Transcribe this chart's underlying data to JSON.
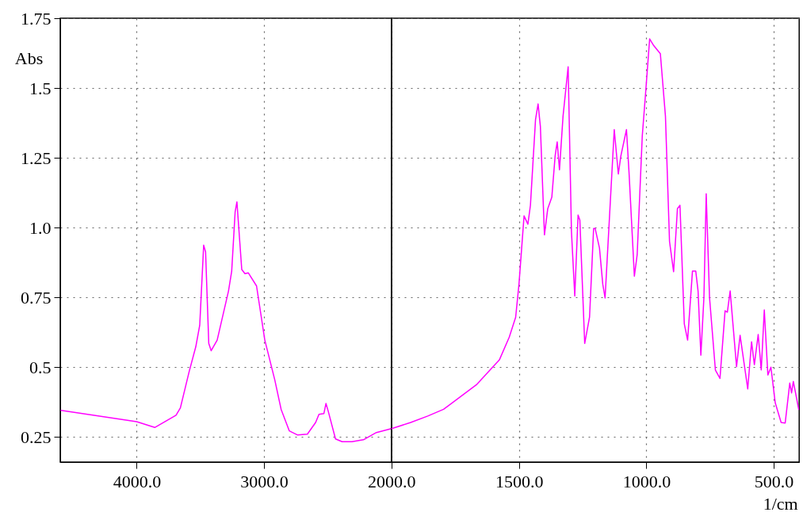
{
  "chart_data": [
    {
      "type": "line",
      "ylabel": "Abs",
      "xlim": [
        4600,
        2000
      ],
      "ylim": [
        0.16,
        1.75
      ],
      "xticks": [
        {
          "value": 4000,
          "label": "4000.0"
        },
        {
          "value": 3000,
          "label": "3000.0"
        },
        {
          "value": 2000,
          "label": "2000.0"
        }
      ],
      "yticks": [
        0.25,
        0.5,
        0.75,
        {
          "value": 1,
          "label": "1.0"
        },
        1.25,
        1.5,
        1.75
      ],
      "grid": true,
      "marker": "none",
      "line_style": "solid",
      "series": [
        {
          "color": "#ff00ff",
          "x": [
            4593,
            4000,
            3858,
            3691,
            3657,
            3588,
            3536,
            3505,
            3474,
            3459,
            3434,
            3415,
            3368,
            3279,
            3254,
            3227,
            3213,
            3175,
            3150,
            3124,
            3059,
            2994,
            2916,
            2866,
            2802,
            2736,
            2660,
            2595,
            2569,
            2530,
            2514,
            2496,
            2439,
            2387,
            2310,
            2220,
            2118,
            2000
          ],
          "values": [
            0.345,
            0.305,
            0.284,
            0.328,
            0.354,
            0.484,
            0.573,
            0.65,
            0.937,
            0.913,
            0.585,
            0.559,
            0.597,
            0.773,
            0.844,
            1.056,
            1.092,
            0.85,
            0.835,
            0.838,
            0.791,
            0.597,
            0.455,
            0.349,
            0.272,
            0.257,
            0.26,
            0.302,
            0.331,
            0.334,
            0.37,
            0.342,
            0.243,
            0.233,
            0.233,
            0.24,
            0.266,
            0.28
          ]
        }
      ]
    },
    {
      "type": "line",
      "xlabel": "1/cm",
      "xlim": [
        2000,
        400
      ],
      "ylim": [
        0.16,
        1.75
      ],
      "xticks": [
        {
          "value": 1500,
          "label": "1500.0"
        },
        {
          "value": 1000,
          "label": "1000.0"
        },
        {
          "value": 500,
          "label": "500.0"
        }
      ],
      "yticks": [
        0.25,
        0.5,
        0.75,
        1,
        1.25,
        1.5,
        1.75
      ],
      "tick_labels": "x",
      "grid": true,
      "marker": "none",
      "line_style": "solid",
      "series": [
        {
          "color": "#ff00ff",
          "x": [
            2000,
            1925,
            1858,
            1796,
            1667,
            1577,
            1538,
            1513,
            1500,
            1480,
            1465,
            1455,
            1435,
            1425,
            1416,
            1400,
            1387,
            1371,
            1358,
            1350,
            1341,
            1327,
            1307,
            1294,
            1281,
            1268,
            1261,
            1242,
            1223,
            1207,
            1201,
            1184,
            1171,
            1162,
            1126,
            1110,
            1100,
            1078,
            1068,
            1047,
            1036,
            1016,
            1003,
            987,
            971,
            945,
            925,
            909,
            893,
            878,
            868,
            851,
            838,
            819,
            806,
            797,
            786,
            774,
            765,
            752,
            729,
            711,
            691,
            682,
            671,
            646,
            632,
            602,
            587,
            576,
            561,
            549,
            537,
            523,
            511,
            494,
            471,
            455,
            437,
            430,
            423,
            402
          ],
          "values": [
            0.28,
            0.302,
            0.325,
            0.349,
            0.437,
            0.526,
            0.608,
            0.679,
            0.797,
            1.042,
            1.012,
            1.08,
            1.387,
            1.443,
            1.363,
            0.974,
            1.068,
            1.109,
            1.257,
            1.307,
            1.207,
            1.399,
            1.576,
            0.986,
            0.755,
            1.045,
            1.027,
            0.585,
            0.679,
            0.997,
            0.997,
            0.927,
            0.797,
            0.748,
            1.351,
            1.192,
            1.257,
            1.351,
            1.198,
            0.826,
            0.903,
            1.328,
            1.481,
            1.676,
            1.652,
            1.623,
            1.399,
            0.95,
            0.842,
            1.068,
            1.08,
            0.655,
            0.597,
            0.844,
            0.844,
            0.773,
            0.543,
            0.75,
            1.121,
            0.75,
            0.49,
            0.46,
            0.702,
            0.697,
            0.773,
            0.502,
            0.614,
            0.422,
            0.591,
            0.509,
            0.617,
            0.49,
            0.705,
            0.472,
            0.5,
            0.372,
            0.302,
            0.3,
            0.443,
            0.408,
            0.449,
            0.349
          ]
        }
      ]
    }
  ]
}
